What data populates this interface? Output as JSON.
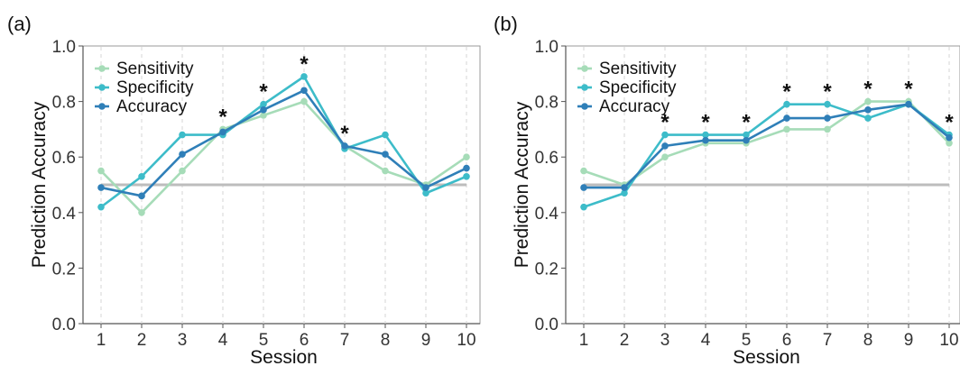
{
  "chart_data": [
    {
      "type": "line",
      "panel_label": "(a)",
      "xlabel": "Session",
      "ylabel": "Prediction Accuracy",
      "x": [
        1,
        2,
        3,
        4,
        5,
        6,
        7,
        8,
        9,
        10
      ],
      "ylim": [
        0.0,
        1.0
      ],
      "yticks": [
        "0.0",
        "0.2",
        "0.4",
        "0.6",
        "0.8",
        "1.0"
      ],
      "legend_position": "top-left",
      "reference_line": 0.5,
      "series": [
        {
          "name": "Sensitivity",
          "color": "#a6dcb8",
          "values": [
            0.55,
            0.4,
            0.55,
            0.7,
            0.75,
            0.8,
            0.64,
            0.55,
            0.5,
            0.6
          ]
        },
        {
          "name": "Specificity",
          "color": "#3dbcc9",
          "values": [
            0.42,
            0.53,
            0.68,
            0.68,
            0.79,
            0.89,
            0.63,
            0.68,
            0.47,
            0.53
          ]
        },
        {
          "name": "Accuracy",
          "color": "#2f7fb8",
          "values": [
            0.49,
            0.46,
            0.61,
            0.69,
            0.77,
            0.84,
            0.64,
            0.61,
            0.49,
            0.56
          ]
        }
      ],
      "significant": [
        {
          "x": 4,
          "y": 0.7,
          "label": "*"
        },
        {
          "x": 5,
          "y": 0.79,
          "label": "*"
        },
        {
          "x": 6,
          "y": 0.89,
          "label": "*"
        },
        {
          "x": 7,
          "y": 0.64,
          "label": "*"
        }
      ]
    },
    {
      "type": "line",
      "panel_label": "(b)",
      "xlabel": "Session",
      "ylabel": "Prediction Accuracy",
      "x": [
        1,
        2,
        3,
        4,
        5,
        6,
        7,
        8,
        9,
        10
      ],
      "ylim": [
        0.0,
        1.0
      ],
      "yticks": [
        "0.0",
        "0.2",
        "0.4",
        "0.6",
        "0.8",
        "1.0"
      ],
      "legend_position": "top-left",
      "reference_line": 0.5,
      "series": [
        {
          "name": "Sensitivity",
          "color": "#a6dcb8",
          "values": [
            0.55,
            0.5,
            0.6,
            0.65,
            0.65,
            0.7,
            0.7,
            0.8,
            0.8,
            0.65
          ]
        },
        {
          "name": "Specificity",
          "color": "#3dbcc9",
          "values": [
            0.42,
            0.47,
            0.68,
            0.68,
            0.68,
            0.79,
            0.79,
            0.74,
            0.79,
            0.68
          ]
        },
        {
          "name": "Accuracy",
          "color": "#2f7fb8",
          "values": [
            0.49,
            0.49,
            0.64,
            0.66,
            0.66,
            0.74,
            0.74,
            0.77,
            0.79,
            0.67
          ]
        }
      ],
      "significant": [
        {
          "x": 3,
          "y": 0.68,
          "label": "*"
        },
        {
          "x": 4,
          "y": 0.68,
          "label": "*"
        },
        {
          "x": 5,
          "y": 0.68,
          "label": "*"
        },
        {
          "x": 6,
          "y": 0.79,
          "label": "*"
        },
        {
          "x": 7,
          "y": 0.79,
          "label": "*"
        },
        {
          "x": 8,
          "y": 0.8,
          "label": "*"
        },
        {
          "x": 9,
          "y": 0.8,
          "label": "*"
        },
        {
          "x": 10,
          "y": 0.68,
          "label": "*"
        }
      ]
    }
  ]
}
